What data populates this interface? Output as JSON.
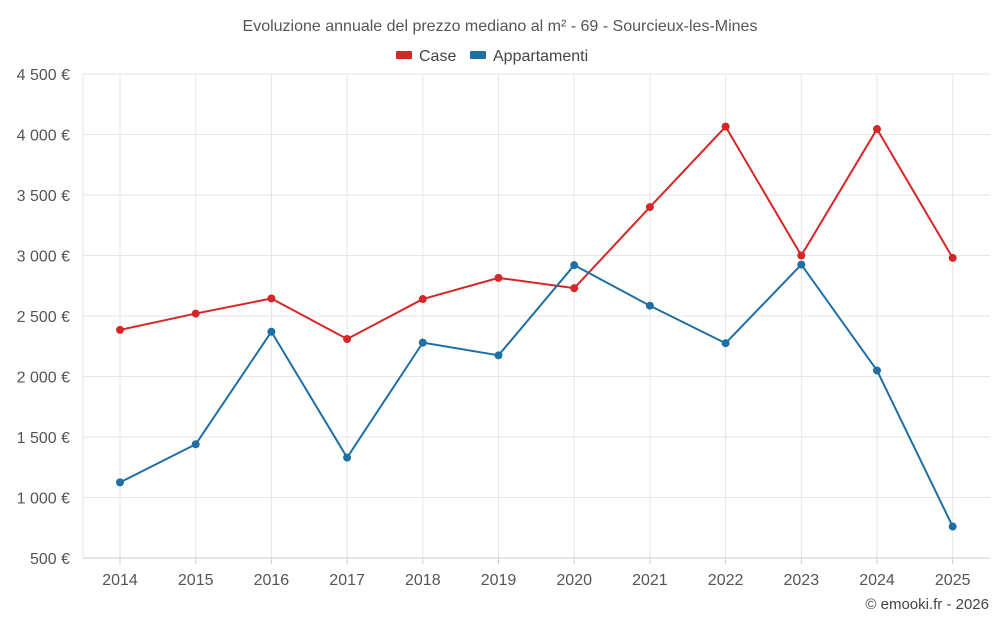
{
  "chart_data": {
    "type": "line",
    "title": "Evoluzione annuale del prezzo mediano al m² - 69 - Sourcieux-les-Mines",
    "categories": [
      "2014",
      "2015",
      "2016",
      "2017",
      "2018",
      "2019",
      "2020",
      "2021",
      "2022",
      "2023",
      "2024",
      "2025"
    ],
    "ylim": [
      500,
      4500
    ],
    "yticks": [
      500,
      1000,
      1500,
      2000,
      2500,
      3000,
      3500,
      4000,
      4500
    ],
    "ytick_labels": [
      "500 €",
      "1 000 €",
      "1 500 €",
      "2 000 €",
      "2 500 €",
      "3 000 €",
      "3 500 €",
      "4 000 €",
      "4 500 €"
    ],
    "grid": true,
    "legend_position": "top-center",
    "series": [
      {
        "name": "Case",
        "color": "#d62728",
        "values": [
          2385,
          2520,
          2645,
          2310,
          2640,
          2815,
          2730,
          3400,
          4065,
          3000,
          4045,
          2980
        ]
      },
      {
        "name": "Appartamenti",
        "color": "#1f6fa3",
        "values": [
          1125,
          1440,
          2370,
          1330,
          2280,
          2175,
          2920,
          2585,
          2275,
          2925,
          2050,
          760
        ]
      }
    ]
  },
  "credit": "© emooki.fr - 2026"
}
